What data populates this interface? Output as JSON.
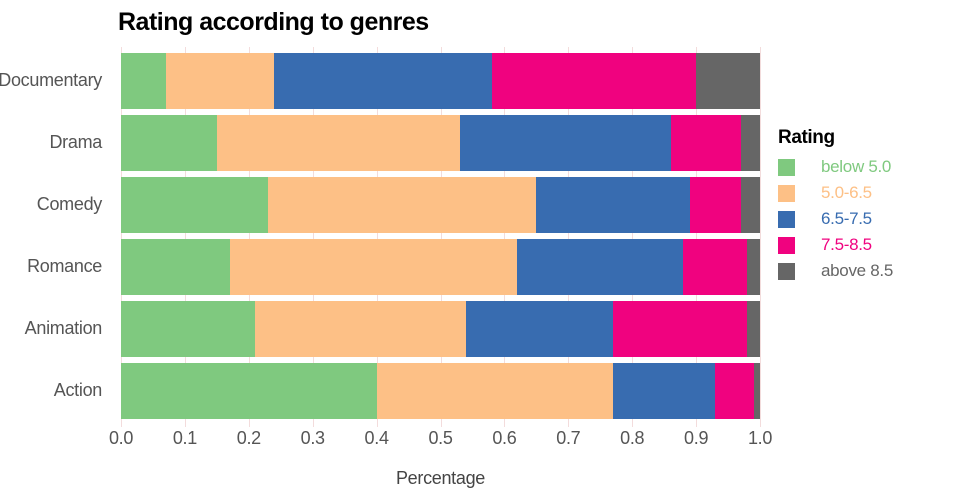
{
  "chart_data": {
    "type": "bar",
    "orientation": "horizontal-stacked",
    "title": "Rating according to genres",
    "xlabel": "Percentage",
    "ylabel": "",
    "xlim": [
      0.0,
      1.0
    ],
    "x_ticks": [
      0.0,
      0.1,
      0.2,
      0.3,
      0.4,
      0.5,
      0.6,
      0.7,
      0.8,
      0.9,
      1.0
    ],
    "x_tick_labels": [
      "0.0",
      "0.1",
      "0.2",
      "0.3",
      "0.4",
      "0.5",
      "0.6",
      "0.7",
      "0.8",
      "0.9",
      "1.0"
    ],
    "categories": [
      "Documentary",
      "Drama",
      "Comedy",
      "Romance",
      "Animation",
      "Action"
    ],
    "series": [
      {
        "name": "below 5.0",
        "color": "#7fc97f",
        "values": [
          0.07,
          0.15,
          0.23,
          0.17,
          0.21,
          0.4
        ]
      },
      {
        "name": "5.0-6.5",
        "color": "#fdc086",
        "values": [
          0.17,
          0.38,
          0.42,
          0.45,
          0.33,
          0.37
        ]
      },
      {
        "name": "6.5-7.5",
        "color": "#386cb0",
        "values": [
          0.34,
          0.33,
          0.24,
          0.26,
          0.23,
          0.16
        ]
      },
      {
        "name": "7.5-8.5",
        "color": "#f0027f",
        "values": [
          0.32,
          0.11,
          0.08,
          0.1,
          0.21,
          0.06
        ]
      },
      {
        "name": "above 8.5",
        "color": "#666666",
        "values": [
          0.1,
          0.03,
          0.03,
          0.02,
          0.02,
          0.01
        ]
      }
    ],
    "legend": {
      "title": "Rating",
      "position": "right"
    },
    "grid": {
      "vertical": true,
      "color": "#f3dcdc"
    },
    "background_color": "#ffffff"
  }
}
